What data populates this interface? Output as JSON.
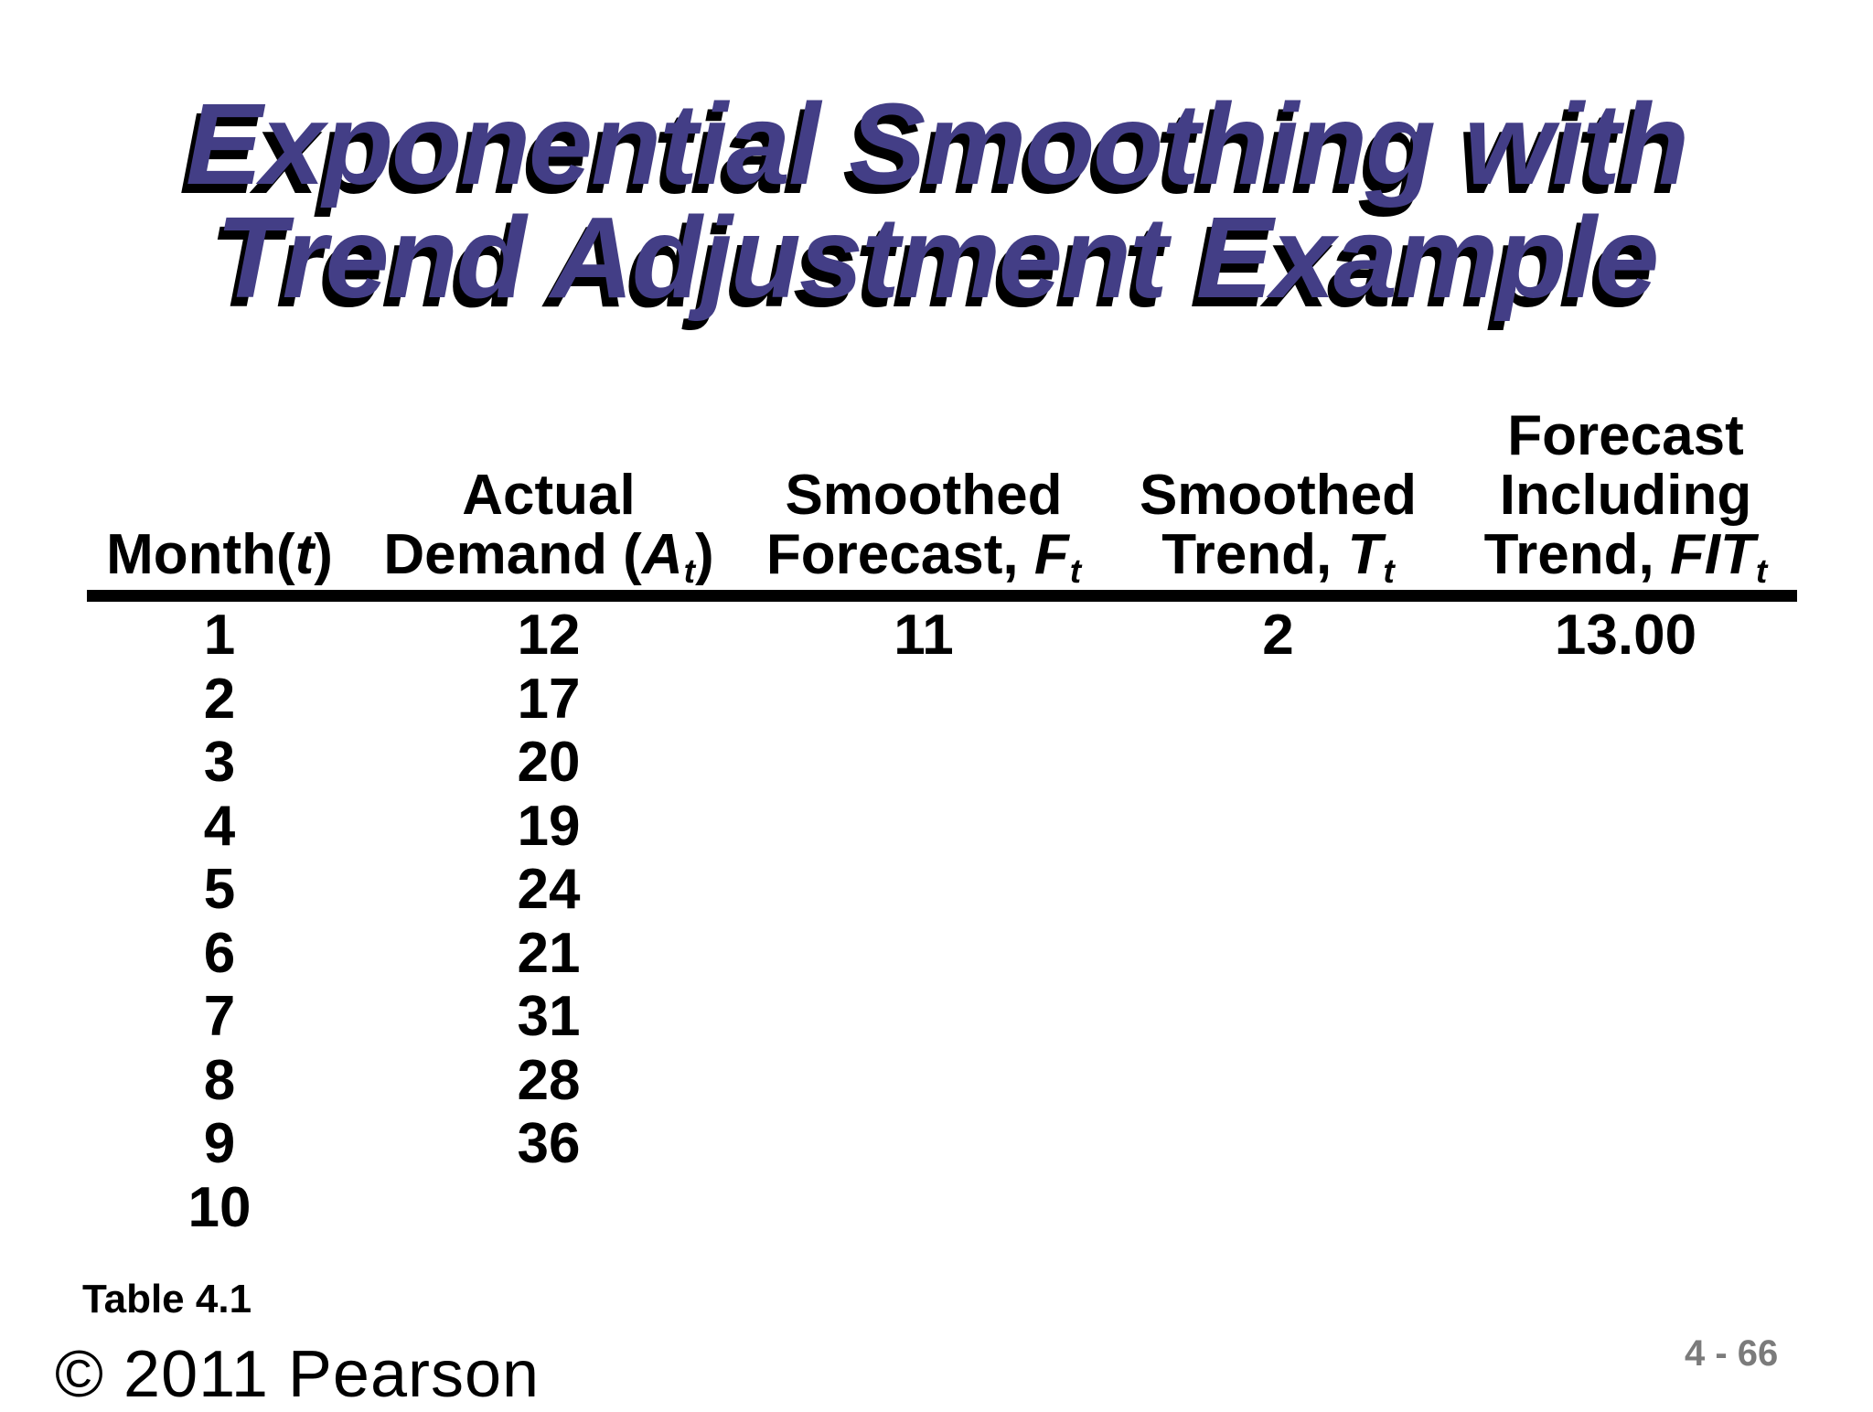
{
  "slide": {
    "title_line1": "Exponential Smoothing with",
    "title_line2": "Trend Adjustment Example",
    "table_label": "Table 4.1",
    "copyright": "© 2011 Pearson",
    "page_number": "4 - 66",
    "colors": {
      "title": "#433E86",
      "title_shadow": "#000000",
      "page_number": "#7b7b7b",
      "header_rule": "#000000"
    }
  },
  "table": {
    "headers": {
      "month": {
        "pre": "Month(",
        "var": "t",
        "post": ")"
      },
      "demand": {
        "top": "Actual",
        "pre": "Demand (",
        "var": "A",
        "sub": "t",
        "post": ")"
      },
      "forecast": {
        "top": "Smoothed",
        "pre": "Forecast, ",
        "var": "F",
        "sub": "t"
      },
      "trend": {
        "top": "Smoothed",
        "pre": "Trend, ",
        "var": "T",
        "sub": "t"
      },
      "fit": {
        "top": "Forecast",
        "mid": "Including",
        "pre": "Trend, ",
        "var": "FIT",
        "sub": "t"
      }
    },
    "rows": [
      {
        "month": "1",
        "demand": "12",
        "forecast": "11",
        "trend": "2",
        "fit": "13.00"
      },
      {
        "month": "2",
        "demand": "17",
        "forecast": "",
        "trend": "",
        "fit": ""
      },
      {
        "month": "3",
        "demand": "20",
        "forecast": "",
        "trend": "",
        "fit": ""
      },
      {
        "month": "4",
        "demand": "19",
        "forecast": "",
        "trend": "",
        "fit": ""
      },
      {
        "month": "5",
        "demand": "24",
        "forecast": "",
        "trend": "",
        "fit": ""
      },
      {
        "month": "6",
        "demand": "21",
        "forecast": "",
        "trend": "",
        "fit": ""
      },
      {
        "month": "7",
        "demand": "31",
        "forecast": "",
        "trend": "",
        "fit": ""
      },
      {
        "month": "8",
        "demand": "28",
        "forecast": "",
        "trend": "",
        "fit": ""
      },
      {
        "month": "9",
        "demand": "36",
        "forecast": "",
        "trend": "",
        "fit": ""
      },
      {
        "month": "10",
        "demand": "",
        "forecast": "",
        "trend": "",
        "fit": ""
      }
    ]
  }
}
